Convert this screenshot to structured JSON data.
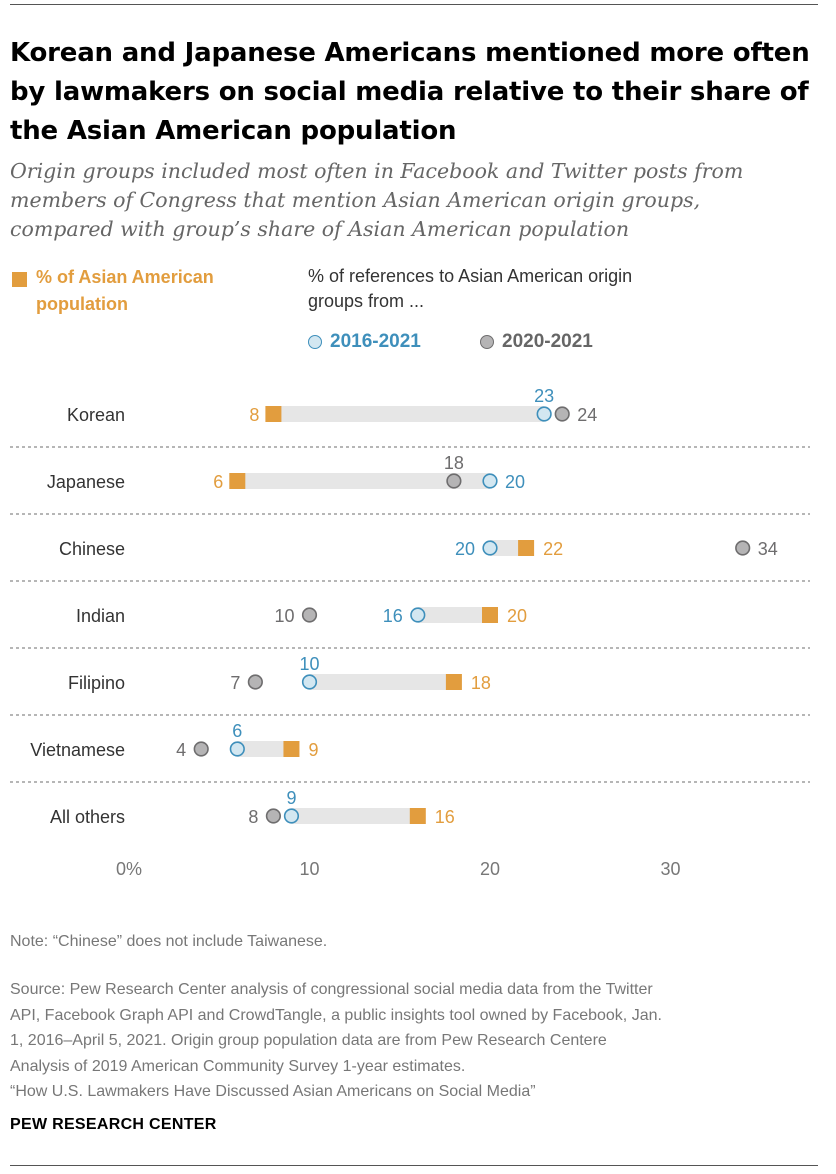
{
  "title": "Korean and Japanese Americans mentioned more often by lawmakers on social media relative to their share of the Asian American population",
  "subtitle": "Origin groups included most often in Facebook and Twitter posts from members of Congress that mention Asian American origin groups, compared with group’s share of Asian American population",
  "legend": {
    "population": "% of Asian American population",
    "references": "% of references to Asian American origin groups from ...",
    "series_2016": "2016-2021",
    "series_2020": "2020-2021"
  },
  "colors": {
    "population": "#E29D3E",
    "series_2016_stroke": "#3E8FBB",
    "series_2016_fill": "#D3E7F1",
    "series_2020_stroke": "#6E6D6E",
    "series_2020_fill": "#B5B4B5",
    "bar": "#E6E6E6",
    "tick_text": "#777777"
  },
  "chart_data": {
    "type": "dot",
    "categories": [
      "Korean",
      "Japanese",
      "Chinese",
      "Indian",
      "Filipino",
      "Vietnamese",
      "All others"
    ],
    "series": [
      {
        "name": "% of Asian American population",
        "values": [
          8,
          6,
          22,
          20,
          18,
          9,
          16
        ]
      },
      {
        "name": "2016-2021",
        "values": [
          23,
          20,
          20,
          16,
          10,
          6,
          9
        ]
      },
      {
        "name": "2020-2021",
        "values": [
          24,
          18,
          34,
          10,
          7,
          4,
          8
        ]
      }
    ],
    "x_ticks": [
      "0%",
      "10",
      "20",
      "30"
    ],
    "xlim": [
      0,
      34
    ]
  },
  "note": "Note: “Chinese” does not include Taiwanese.",
  "source_lines": [
    "Source: Pew Research Center analysis of congressional social media data from the Twitter",
    "API, Facebook Graph API and CrowdTangle, a public insights tool owned by Facebook, Jan.",
    "1, 2016–April 5, 2021. Origin group population data are from Pew Research Centere",
    "Analysis of 2019 American Community Survey 1-year estimates.",
    "“How U.S. Lawmakers  Have Discussed Asian Americans on Social Media”"
  ],
  "brand": "PEW RESEARCH CENTER"
}
